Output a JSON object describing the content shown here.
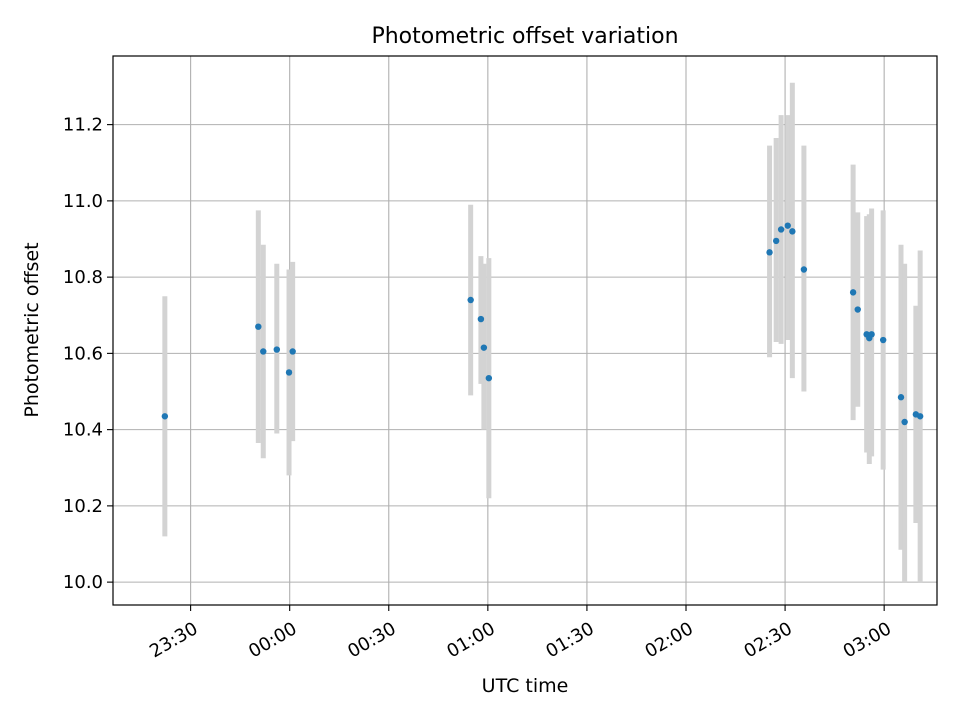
{
  "chart_data": {
    "type": "scatter",
    "title": "Photometric offset variation",
    "xlabel": "UTC time",
    "ylabel": "Photometric offset",
    "x_unit": "minutes from 23:00",
    "xlim": [
      6.5,
      256
    ],
    "ylim": [
      9.94,
      11.38
    ],
    "xticks": [
      30,
      60,
      90,
      120,
      150,
      180,
      210,
      240
    ],
    "xtick_labels": [
      "23:30",
      "00:00",
      "00:30",
      "01:00",
      "01:30",
      "02:00",
      "02:30",
      "03:00"
    ],
    "yticks": [
      10.0,
      10.2,
      10.4,
      10.6,
      10.8,
      11.0,
      11.2
    ],
    "ytick_labels": [
      "10.0",
      "10.2",
      "10.4",
      "10.6",
      "10.8",
      "11.0",
      "11.2"
    ],
    "grid": true,
    "colors": {
      "points": "#1f77b4",
      "errorbars": "#d3d3d3",
      "grid": "#b0b0b0"
    },
    "series": [
      {
        "points": [
          {
            "x": 22.2,
            "y": 10.435,
            "lo": 10.12,
            "hi": 10.75
          },
          {
            "x": 50.5,
            "y": 10.67,
            "lo": 10.365,
            "hi": 10.975
          },
          {
            "x": 52.0,
            "y": 10.605,
            "lo": 10.325,
            "hi": 10.885
          },
          {
            "x": 56.1,
            "y": 10.61,
            "lo": 10.39,
            "hi": 10.835
          },
          {
            "x": 59.8,
            "y": 10.55,
            "lo": 10.28,
            "hi": 10.82
          },
          {
            "x": 60.9,
            "y": 10.605,
            "lo": 10.37,
            "hi": 10.84
          },
          {
            "x": 114.8,
            "y": 10.74,
            "lo": 10.49,
            "hi": 10.99
          },
          {
            "x": 117.9,
            "y": 10.69,
            "lo": 10.52,
            "hi": 10.855
          },
          {
            "x": 118.8,
            "y": 10.615,
            "lo": 10.4,
            "hi": 10.835
          },
          {
            "x": 120.3,
            "y": 10.535,
            "lo": 10.22,
            "hi": 10.85
          },
          {
            "x": 205.3,
            "y": 10.865,
            "lo": 10.59,
            "hi": 11.145
          },
          {
            "x": 207.3,
            "y": 10.895,
            "lo": 10.63,
            "hi": 11.165
          },
          {
            "x": 208.8,
            "y": 10.925,
            "lo": 10.625,
            "hi": 11.225
          },
          {
            "x": 210.8,
            "y": 10.935,
            "lo": 10.635,
            "hi": 11.225
          },
          {
            "x": 212.2,
            "y": 10.92,
            "lo": 10.535,
            "hi": 11.31
          },
          {
            "x": 215.7,
            "y": 10.82,
            "lo": 10.5,
            "hi": 11.145
          },
          {
            "x": 230.6,
            "y": 10.76,
            "lo": 10.425,
            "hi": 11.095
          },
          {
            "x": 232.0,
            "y": 10.715,
            "lo": 10.46,
            "hi": 10.97
          },
          {
            "x": 234.7,
            "y": 10.65,
            "lo": 10.34,
            "hi": 10.96
          },
          {
            "x": 235.5,
            "y": 10.64,
            "lo": 10.31,
            "hi": 10.965
          },
          {
            "x": 236.2,
            "y": 10.65,
            "lo": 10.33,
            "hi": 10.98
          },
          {
            "x": 239.7,
            "y": 10.635,
            "lo": 10.295,
            "hi": 10.975
          },
          {
            "x": 245.1,
            "y": 10.485,
            "lo": 10.085,
            "hi": 10.885
          },
          {
            "x": 246.2,
            "y": 10.42,
            "lo": 10.0,
            "hi": 10.835
          },
          {
            "x": 249.6,
            "y": 10.44,
            "lo": 10.155,
            "hi": 10.725
          },
          {
            "x": 250.9,
            "y": 10.435,
            "lo": 10.0,
            "hi": 10.87
          }
        ]
      }
    ]
  }
}
